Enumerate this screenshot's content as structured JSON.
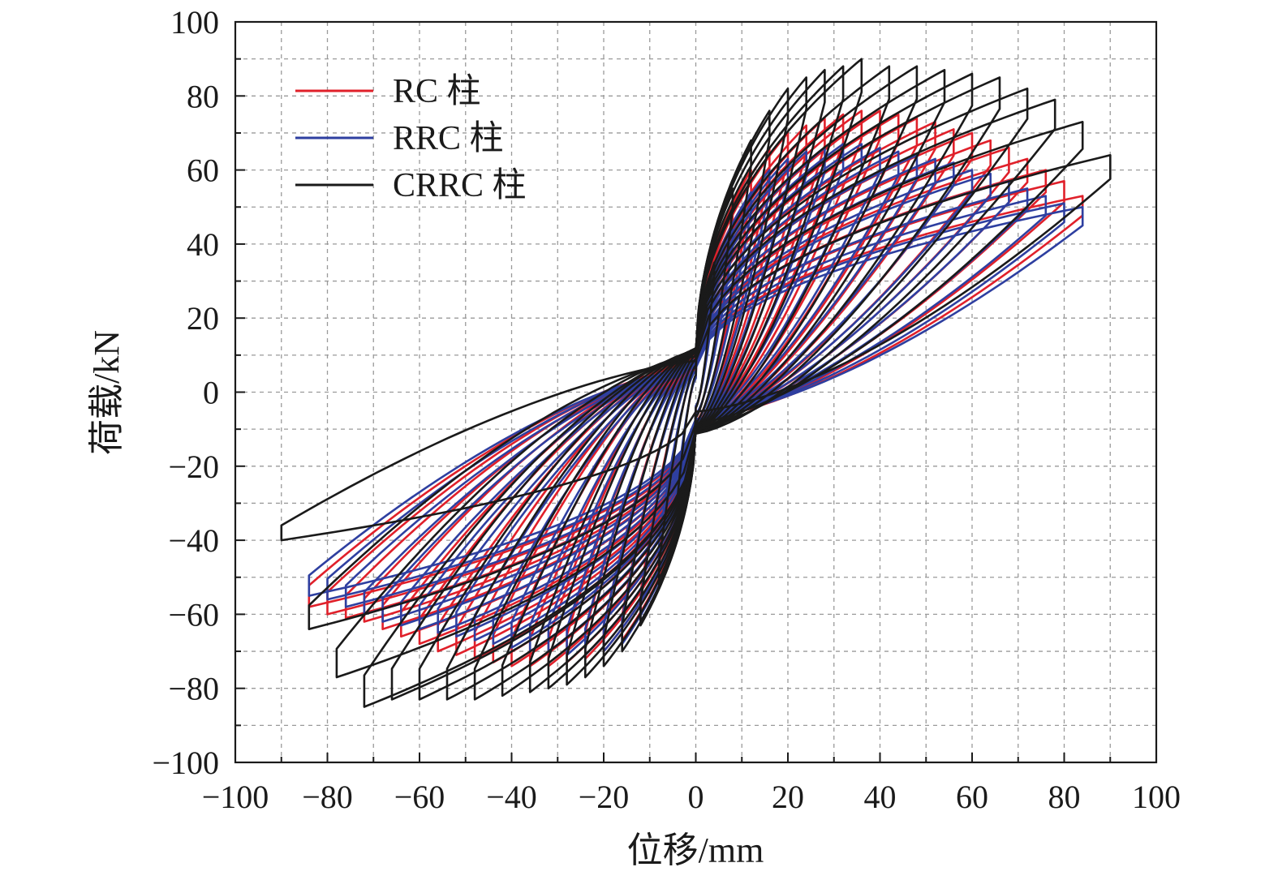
{
  "chart_data": {
    "type": "line",
    "xlabel": "位移/mm",
    "ylabel": "荷载/kN",
    "xlim": [
      -100,
      100
    ],
    "ylim": [
      -100,
      100
    ],
    "xticks": [
      -100,
      -80,
      -60,
      -40,
      -20,
      0,
      20,
      40,
      60,
      80,
      100
    ],
    "yticks": [
      -100,
      -80,
      -60,
      -40,
      -20,
      0,
      20,
      40,
      60,
      80,
      100
    ],
    "grid": true,
    "legend_position": "top-left",
    "series": [
      {
        "name": "RC 柱",
        "color": "#e0202a",
        "loops": [
          {
            "amp": 4,
            "pos_peak": 30,
            "neg_peak": -30
          },
          {
            "amp": 8,
            "pos_peak": 48,
            "neg_peak": -48
          },
          {
            "amp": 12,
            "pos_peak": 60,
            "neg_peak": -60
          },
          {
            "amp": 16,
            "pos_peak": 66,
            "neg_peak": -67
          },
          {
            "amp": 20,
            "pos_peak": 70,
            "neg_peak": -70
          },
          {
            "amp": 24,
            "pos_peak": 72,
            "neg_peak": -72
          },
          {
            "amp": 28,
            "pos_peak": 74,
            "neg_peak": -73
          },
          {
            "amp": 32,
            "pos_peak": 75,
            "neg_peak": -74
          },
          {
            "amp": 36,
            "pos_peak": 76,
            "neg_peak": -74
          },
          {
            "amp": 40,
            "pos_peak": 76,
            "neg_peak": -74
          },
          {
            "amp": 44,
            "pos_peak": 75,
            "neg_peak": -73
          },
          {
            "amp": 48,
            "pos_peak": 74,
            "neg_peak": -72
          },
          {
            "amp": 52,
            "pos_peak": 73,
            "neg_peak": -71
          },
          {
            "amp": 56,
            "pos_peak": 71,
            "neg_peak": -70
          },
          {
            "amp": 60,
            "pos_peak": 70,
            "neg_peak": -68
          },
          {
            "amp": 64,
            "pos_peak": 68,
            "neg_peak": -66
          },
          {
            "amp": 68,
            "pos_peak": 66,
            "neg_peak": -64
          },
          {
            "amp": 72,
            "pos_peak": 63,
            "neg_peak": -62
          },
          {
            "amp": 76,
            "pos_peak": 60,
            "neg_peak": -61
          },
          {
            "amp": 80,
            "pos_peak": 57,
            "neg_peak": -60
          },
          {
            "amp": 84,
            "pos_peak": 53,
            "neg_peak": -58
          }
        ]
      },
      {
        "name": "RRC 柱",
        "color": "#2e3fa0",
        "loops": [
          {
            "amp": 4,
            "pos_peak": 28,
            "neg_peak": -28
          },
          {
            "amp": 8,
            "pos_peak": 44,
            "neg_peak": -45
          },
          {
            "amp": 12,
            "pos_peak": 54,
            "neg_peak": -62
          },
          {
            "amp": 16,
            "pos_peak": 60,
            "neg_peak": -68
          },
          {
            "amp": 20,
            "pos_peak": 63,
            "neg_peak": -70
          },
          {
            "amp": 24,
            "pos_peak": 65,
            "neg_peak": -71
          },
          {
            "amp": 28,
            "pos_peak": 66,
            "neg_peak": -71
          },
          {
            "amp": 32,
            "pos_peak": 67,
            "neg_peak": -70
          },
          {
            "amp": 36,
            "pos_peak": 67,
            "neg_peak": -70
          },
          {
            "amp": 40,
            "pos_peak": 66,
            "neg_peak": -69
          },
          {
            "amp": 44,
            "pos_peak": 65,
            "neg_peak": -68
          },
          {
            "amp": 48,
            "pos_peak": 64,
            "neg_peak": -67
          },
          {
            "amp": 52,
            "pos_peak": 63,
            "neg_peak": -66
          },
          {
            "amp": 56,
            "pos_peak": 62,
            "neg_peak": -65
          },
          {
            "amp": 60,
            "pos_peak": 60,
            "neg_peak": -64
          },
          {
            "amp": 64,
            "pos_peak": 59,
            "neg_peak": -63
          },
          {
            "amp": 68,
            "pos_peak": 57,
            "neg_peak": -62
          },
          {
            "amp": 72,
            "pos_peak": 55,
            "neg_peak": -60
          },
          {
            "amp": 76,
            "pos_peak": 53,
            "neg_peak": -58
          },
          {
            "amp": 80,
            "pos_peak": 51,
            "neg_peak": -56
          },
          {
            "amp": 84,
            "pos_peak": 50,
            "neg_peak": -55
          }
        ]
      },
      {
        "name": "CRRC 柱",
        "color": "#1a1a1a",
        "loops": [
          {
            "amp": 4,
            "pos_peak": 35,
            "neg_peak": -32
          },
          {
            "amp": 8,
            "pos_peak": 55,
            "neg_peak": -52
          },
          {
            "amp": 12,
            "pos_peak": 68,
            "neg_peak": -63
          },
          {
            "amp": 16,
            "pos_peak": 76,
            "neg_peak": -70
          },
          {
            "amp": 20,
            "pos_peak": 82,
            "neg_peak": -74
          },
          {
            "amp": 24,
            "pos_peak": 85,
            "neg_peak": -77
          },
          {
            "amp": 28,
            "pos_peak": 87,
            "neg_peak": -79
          },
          {
            "amp": 32,
            "pos_peak": 88,
            "neg_peak": -80
          },
          {
            "amp": 36,
            "pos_peak": 90,
            "neg_peak": -81
          },
          {
            "amp": 42,
            "pos_peak": 88,
            "neg_peak": -82
          },
          {
            "amp": 48,
            "pos_peak": 88,
            "neg_peak": -83
          },
          {
            "amp": 54,
            "pos_peak": 87,
            "neg_peak": -83
          },
          {
            "amp": 60,
            "pos_peak": 86,
            "neg_peak": -83
          },
          {
            "amp": 66,
            "pos_peak": 85,
            "neg_peak": -83
          },
          {
            "amp": 72,
            "pos_peak": 82,
            "neg_peak": -85
          },
          {
            "amp": 78,
            "pos_peak": 79,
            "neg_peak": -77
          },
          {
            "amp": 84,
            "pos_peak": 73,
            "neg_peak": -64
          },
          {
            "amp": 90,
            "pos_peak": 64,
            "neg_peak": -40
          }
        ]
      }
    ]
  }
}
